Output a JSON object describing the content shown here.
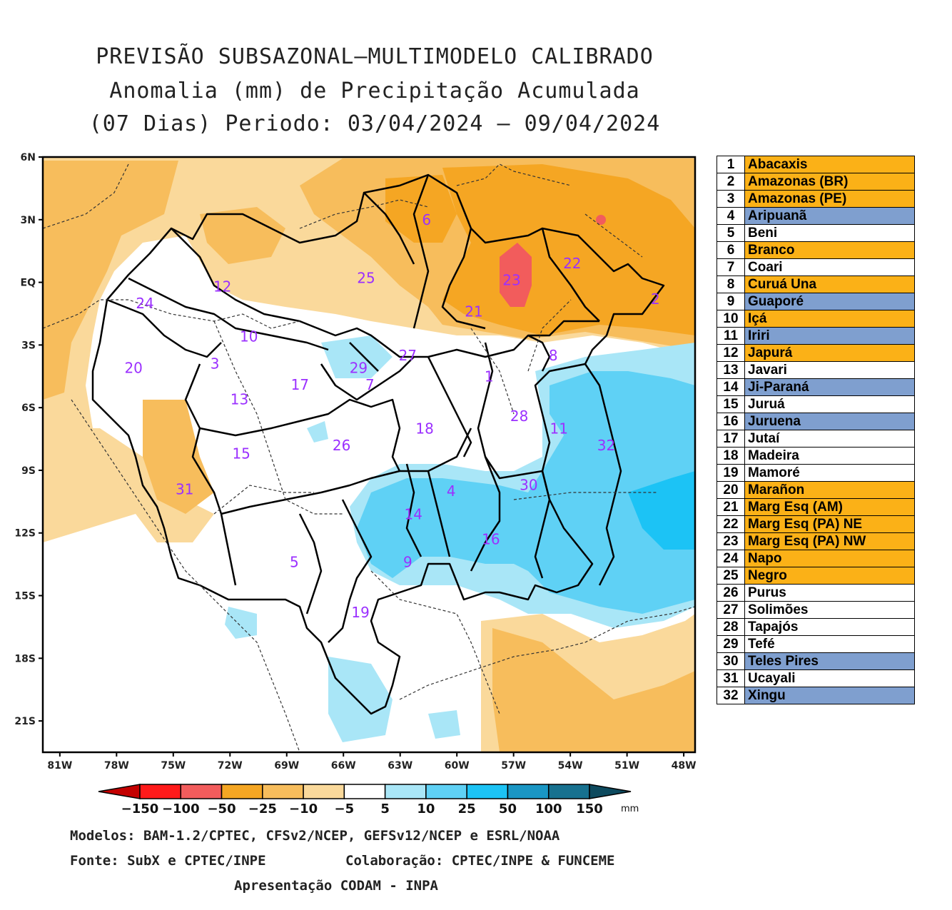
{
  "title": {
    "line1": "PREVISÃO SUBSAZONAL–MULTIMODELO CALIBRADO",
    "line2": "Anomalia (mm) de Precipitação Acumulada",
    "line3": "(07 Dias) Periodo: 03/04/2024 – 09/04/2024"
  },
  "axes": {
    "lat_labels": [
      "6N",
      "3N",
      "EQ",
      "3S",
      "6S",
      "9S",
      "12S",
      "15S",
      "18S",
      "21S"
    ],
    "lon_labels": [
      "81W",
      "78W",
      "75W",
      "72W",
      "69W",
      "66W",
      "63W",
      "60W",
      "57W",
      "54W",
      "51W",
      "48W"
    ]
  },
  "map_labels": [
    {
      "id": "1",
      "lon": -58.3,
      "lat": -4.5
    },
    {
      "id": "2",
      "lon": -49.5,
      "lat": -0.8
    },
    {
      "id": "3",
      "lon": -72.8,
      "lat": -3.9
    },
    {
      "id": "4",
      "lon": -60.3,
      "lat": -10.0
    },
    {
      "id": "5",
      "lon": -68.6,
      "lat": -13.4
    },
    {
      "id": "6",
      "lon": -61.6,
      "lat": 3.0
    },
    {
      "id": "7",
      "lon": -64.6,
      "lat": -4.9
    },
    {
      "id": "8",
      "lon": -54.9,
      "lat": -3.5
    },
    {
      "id": "9",
      "lon": -62.6,
      "lat": -13.4
    },
    {
      "id": "10",
      "lon": -71.0,
      "lat": -2.6
    },
    {
      "id": "11",
      "lon": -54.6,
      "lat": -7.0
    },
    {
      "id": "12",
      "lon": -72.4,
      "lat": -0.2
    },
    {
      "id": "13",
      "lon": -71.5,
      "lat": -5.6
    },
    {
      "id": "14",
      "lon": -62.3,
      "lat": -11.1
    },
    {
      "id": "15",
      "lon": -71.4,
      "lat": -8.2
    },
    {
      "id": "16",
      "lon": -58.2,
      "lat": -12.3
    },
    {
      "id": "17",
      "lon": -68.3,
      "lat": -4.9
    },
    {
      "id": "18",
      "lon": -61.7,
      "lat": -7.0
    },
    {
      "id": "19",
      "lon": -65.1,
      "lat": -15.8
    },
    {
      "id": "20",
      "lon": -77.1,
      "lat": -4.1
    },
    {
      "id": "21",
      "lon": -59.1,
      "lat": -1.4
    },
    {
      "id": "22",
      "lon": -53.9,
      "lat": 0.9
    },
    {
      "id": "23",
      "lon": -57.1,
      "lat": 0.1
    },
    {
      "id": "24",
      "lon": -76.5,
      "lat": -1.0
    },
    {
      "id": "25",
      "lon": -64.8,
      "lat": 0.2
    },
    {
      "id": "26",
      "lon": -66.1,
      "lat": -7.8
    },
    {
      "id": "27",
      "lon": -62.6,
      "lat": -3.5
    },
    {
      "id": "28",
      "lon": -56.7,
      "lat": -6.4
    },
    {
      "id": "29",
      "lon": -65.2,
      "lat": -4.1
    },
    {
      "id": "30",
      "lon": -56.2,
      "lat": -9.7
    },
    {
      "id": "31",
      "lon": -74.4,
      "lat": -9.9
    },
    {
      "id": "32",
      "lon": -52.1,
      "lat": -7.8
    }
  ],
  "colorbar": {
    "labels": [
      "-150",
      "-100",
      "-50",
      "-25",
      "-10",
      "-5",
      "5",
      "10",
      "25",
      "50",
      "100",
      "150"
    ],
    "unit": "mm",
    "colors": [
      "#c40000",
      "#ff1a1a",
      "#f25c5c",
      "#f5a623",
      "#f7bd5c",
      "#fad99b",
      "#ffffff",
      "#a9e6f7",
      "#5fd1f5",
      "#1cc3f5",
      "#1a96c4",
      "#17718f",
      "#0d4a5e"
    ]
  },
  "legend": {
    "colors": {
      "orange": "#fbb117",
      "blue": "#7f9fcf",
      "white": "#ffffff"
    },
    "items": [
      {
        "n": "1",
        "name": "Abacaxis",
        "cat": "orange"
      },
      {
        "n": "2",
        "name": "Amazonas (BR)",
        "cat": "orange"
      },
      {
        "n": "3",
        "name": "Amazonas (PE)",
        "cat": "orange"
      },
      {
        "n": "4",
        "name": "Aripuanã",
        "cat": "blue"
      },
      {
        "n": "5",
        "name": "Beni",
        "cat": "white"
      },
      {
        "n": "6",
        "name": "Branco",
        "cat": "orange"
      },
      {
        "n": "7",
        "name": "Coari",
        "cat": "white"
      },
      {
        "n": "8",
        "name": "Curuá Una",
        "cat": "orange"
      },
      {
        "n": "9",
        "name": "Guaporé",
        "cat": "blue"
      },
      {
        "n": "10",
        "name": "Içá",
        "cat": "orange"
      },
      {
        "n": "11",
        "name": "Iriri",
        "cat": "blue"
      },
      {
        "n": "12",
        "name": "Japurá",
        "cat": "orange"
      },
      {
        "n": "13",
        "name": "Javari",
        "cat": "white"
      },
      {
        "n": "14",
        "name": "Ji-Paraná",
        "cat": "blue"
      },
      {
        "n": "15",
        "name": "Juruá",
        "cat": "white"
      },
      {
        "n": "16",
        "name": "Juruena",
        "cat": "blue"
      },
      {
        "n": "17",
        "name": "Jutaí",
        "cat": "white"
      },
      {
        "n": "18",
        "name": "Madeira",
        "cat": "white"
      },
      {
        "n": "19",
        "name": "Mamoré",
        "cat": "white"
      },
      {
        "n": "20",
        "name": "Marañon",
        "cat": "orange"
      },
      {
        "n": "21",
        "name": "Marg Esq (AM)",
        "cat": "orange"
      },
      {
        "n": "22",
        "name": "Marg Esq (PA) NE",
        "cat": "orange"
      },
      {
        "n": "23",
        "name": "Marg Esq (PA) NW",
        "cat": "orange"
      },
      {
        "n": "24",
        "name": "Napo",
        "cat": "orange"
      },
      {
        "n": "25",
        "name": "Negro",
        "cat": "orange"
      },
      {
        "n": "26",
        "name": "Purus",
        "cat": "white"
      },
      {
        "n": "27",
        "name": "Solimões",
        "cat": "white"
      },
      {
        "n": "28",
        "name": "Tapajós",
        "cat": "white"
      },
      {
        "n": "29",
        "name": "Tefé",
        "cat": "white"
      },
      {
        "n": "30",
        "name": "Teles Pires",
        "cat": "blue"
      },
      {
        "n": "31",
        "name": "Ucayali",
        "cat": "white"
      },
      {
        "n": "32",
        "name": "Xingu",
        "cat": "blue"
      }
    ]
  },
  "footer": {
    "models": "Modelos: BAM-1.2/CPTEC, CFSv2/NCEP, GEFSv12/NCEP e ESRL/NOAA",
    "source": "Fonte: SubX e CPTEC/INPE",
    "collab": "Colaboração: CPTEC/INPE & FUNCEME",
    "presentation": "Apresentação CODAM - INPA"
  }
}
